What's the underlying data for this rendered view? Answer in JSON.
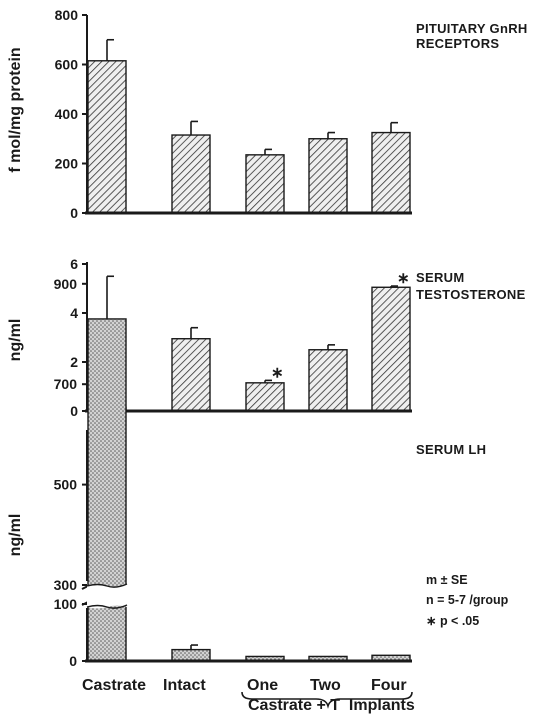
{
  "chart_data": [
    {
      "type": "bar",
      "title": "PITUITARY GnRH RECEPTORS",
      "title_lines": [
        "PITUITARY GnRH",
        "RECEPTORS"
      ],
      "ylabel": "f mol/mg protein",
      "ylim": [
        0,
        800
      ],
      "yticks": [
        0,
        200,
        400,
        600,
        800
      ],
      "ytick_labels": [
        "0",
        "200",
        "400",
        "600",
        "800"
      ],
      "categories": [
        "Castrate",
        "Intact",
        "One",
        "Two",
        "Four"
      ],
      "values": [
        615,
        315,
        235,
        300,
        325
      ],
      "errors": [
        85,
        55,
        22,
        25,
        40
      ],
      "significant": [
        false,
        false,
        false,
        false,
        false
      ]
    },
    {
      "type": "bar",
      "title": "SERUM TESTOSTERONE",
      "title_lines": [
        "SERUM",
        "TESTOSTERONE"
      ],
      "ylabel": "ng/ml",
      "ylim": [
        0,
        6
      ],
      "yticks": [
        0,
        2,
        4,
        6
      ],
      "ytick_labels": [
        "0",
        "2",
        "4",
        "6"
      ],
      "categories": [
        "Castrate",
        "Intact",
        "One",
        "Two",
        "Four"
      ],
      "values": [
        0.15,
        2.95,
        1.15,
        2.5,
        5.05
      ],
      "errors": [
        0.1,
        0.45,
        0.1,
        0.2,
        0.05
      ],
      "significant": [
        false,
        false,
        true,
        false,
        true
      ]
    },
    {
      "type": "bar",
      "title": "SERUM LH",
      "title_lines": [
        "SERUM LH"
      ],
      "ylabel": "ng/ml",
      "axis_break": [
        100,
        300
      ],
      "yticks": [
        0,
        100,
        300,
        500,
        700,
        900
      ],
      "ytick_labels": [
        "0",
        "100",
        "300",
        "500",
        "700",
        "900"
      ],
      "categories": [
        "Castrate",
        "Intact",
        "One",
        "Two",
        "Four"
      ],
      "values": [
        830,
        20,
        8,
        8,
        10
      ],
      "errors": [
        85,
        8,
        0,
        0,
        0
      ],
      "significant": [
        false,
        false,
        false,
        false,
        false
      ]
    }
  ],
  "x_labels": {
    "castrate": "Castrate",
    "intact": "Intact",
    "one": "One",
    "two": "Two",
    "four": "Four",
    "group": "Castrate + T  Implants"
  },
  "legend": {
    "line1": "m ± SE",
    "line2": "n = 5-7 /group",
    "line3": "∗ p < .05"
  }
}
